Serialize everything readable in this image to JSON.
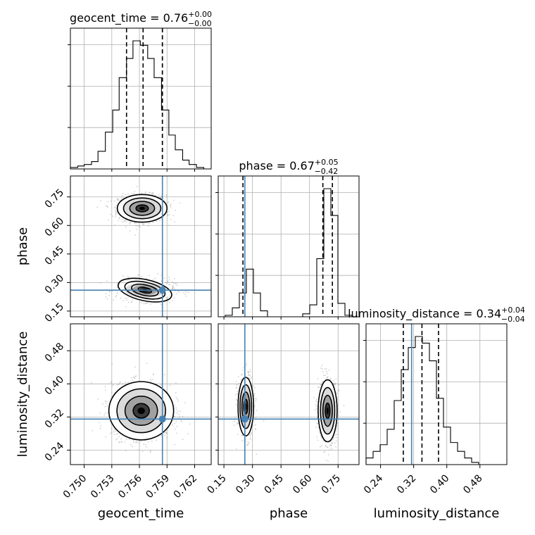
{
  "chart_data": {
    "type": "corner",
    "parameters": [
      "geocent_time",
      "phase",
      "luminosity_distance"
    ],
    "titles": [
      {
        "param": "geocent_time",
        "value": "0.76",
        "plus": "+0.00",
        "minus": "−0.00"
      },
      {
        "param": "phase",
        "value": "0.67",
        "plus": "+0.05",
        "minus": "−0.42"
      },
      {
        "param": "luminosity_distance",
        "value": "0.34",
        "plus": "+0.04",
        "minus": "−0.04"
      }
    ],
    "ranges": {
      "geocent_time": [
        0.7485,
        0.7638
      ],
      "phase": [
        0.12,
        0.86
      ],
      "luminosity_distance": [
        0.205,
        0.545
      ]
    },
    "ticks": {
      "geocent_time": [
        0.75,
        0.753,
        0.756,
        0.759,
        0.762
      ],
      "phase": [
        0.15,
        0.3,
        0.45,
        0.6,
        0.75
      ],
      "luminosity_distance": [
        0.24,
        0.32,
        0.4,
        0.48
      ]
    },
    "tick_labels": {
      "geocent_time": [
        "0.750",
        "0.753",
        "0.756",
        "0.759",
        "0.762"
      ],
      "phase": [
        "0.15",
        "0.30",
        "0.45",
        "0.60",
        "0.75"
      ],
      "luminosity_distance": [
        "0.24",
        "0.32",
        "0.40",
        "0.48"
      ]
    },
    "truths": {
      "geocent_time": 0.7585,
      "phase": 0.26,
      "luminosity_distance": 0.315
    },
    "quantiles": {
      "geocent_time": [
        0.7546,
        0.7564,
        0.7585
      ],
      "phase": [
        0.25,
        0.67,
        0.72
      ],
      "luminosity_distance": [
        0.295,
        0.34,
        0.38
      ]
    },
    "histograms": {
      "geocent_time": {
        "edges": [
          0.7485,
          0.7493,
          0.75,
          0.7508,
          0.7515,
          0.7523,
          0.7531,
          0.7538,
          0.7546,
          0.7553,
          0.7561,
          0.7569,
          0.7576,
          0.7584,
          0.7592,
          0.7599,
          0.7607,
          0.7614,
          0.7622,
          0.763,
          0.7638
        ],
        "counts": [
          1,
          2,
          3,
          5,
          12,
          25,
          40,
          62,
          75,
          87,
          84,
          75,
          62,
          40,
          23,
          13,
          6,
          3,
          1,
          0
        ]
      },
      "phase": {
        "edges": [
          0.12,
          0.157,
          0.194,
          0.231,
          0.268,
          0.305,
          0.342,
          0.379,
          0.416,
          0.453,
          0.49,
          0.527,
          0.564,
          0.601,
          0.638,
          0.675,
          0.712,
          0.749,
          0.786,
          0.823,
          0.86
        ],
        "counts": [
          0,
          1,
          6,
          16,
          32,
          16,
          4,
          0,
          0,
          0,
          0,
          0,
          2,
          8,
          39,
          86,
          68,
          9,
          1,
          0
        ]
      },
      "luminosity_distance": {
        "edges": [
          0.205,
          0.222,
          0.239,
          0.256,
          0.273,
          0.29,
          0.307,
          0.324,
          0.341,
          0.358,
          0.375,
          0.392,
          0.409,
          0.426,
          0.443,
          0.46,
          0.477,
          0.494,
          0.511,
          0.528,
          0.545
        ],
        "counts": [
          3,
          6,
          9,
          16,
          29,
          43,
          53,
          58,
          55,
          47,
          30,
          17,
          10,
          6,
          3,
          1,
          0,
          0,
          0,
          0
        ]
      }
    },
    "modes_2d": {
      "geocent_time_vs_phase": [
        {
          "center": [
            0.7563,
            0.69
          ],
          "spread": [
            0.0013,
            0.035
          ],
          "weight": 0.68
        },
        {
          "center": [
            0.7566,
            0.26
          ],
          "spread": [
            0.0016,
            0.03
          ],
          "weight": 0.32
        }
      ],
      "geocent_time_vs_luminosity_distance": [
        {
          "center": [
            0.7562,
            0.335
          ],
          "spread": [
            0.0016,
            0.032
          ],
          "weight": 1.0
        }
      ],
      "phase_vs_luminosity_distance": [
        {
          "center": [
            0.265,
            0.345
          ],
          "spread": [
            0.022,
            0.038
          ],
          "weight": 0.32
        },
        {
          "center": [
            0.695,
            0.335
          ],
          "spread": [
            0.024,
            0.036
          ],
          "weight": 0.68
        }
      ]
    }
  }
}
